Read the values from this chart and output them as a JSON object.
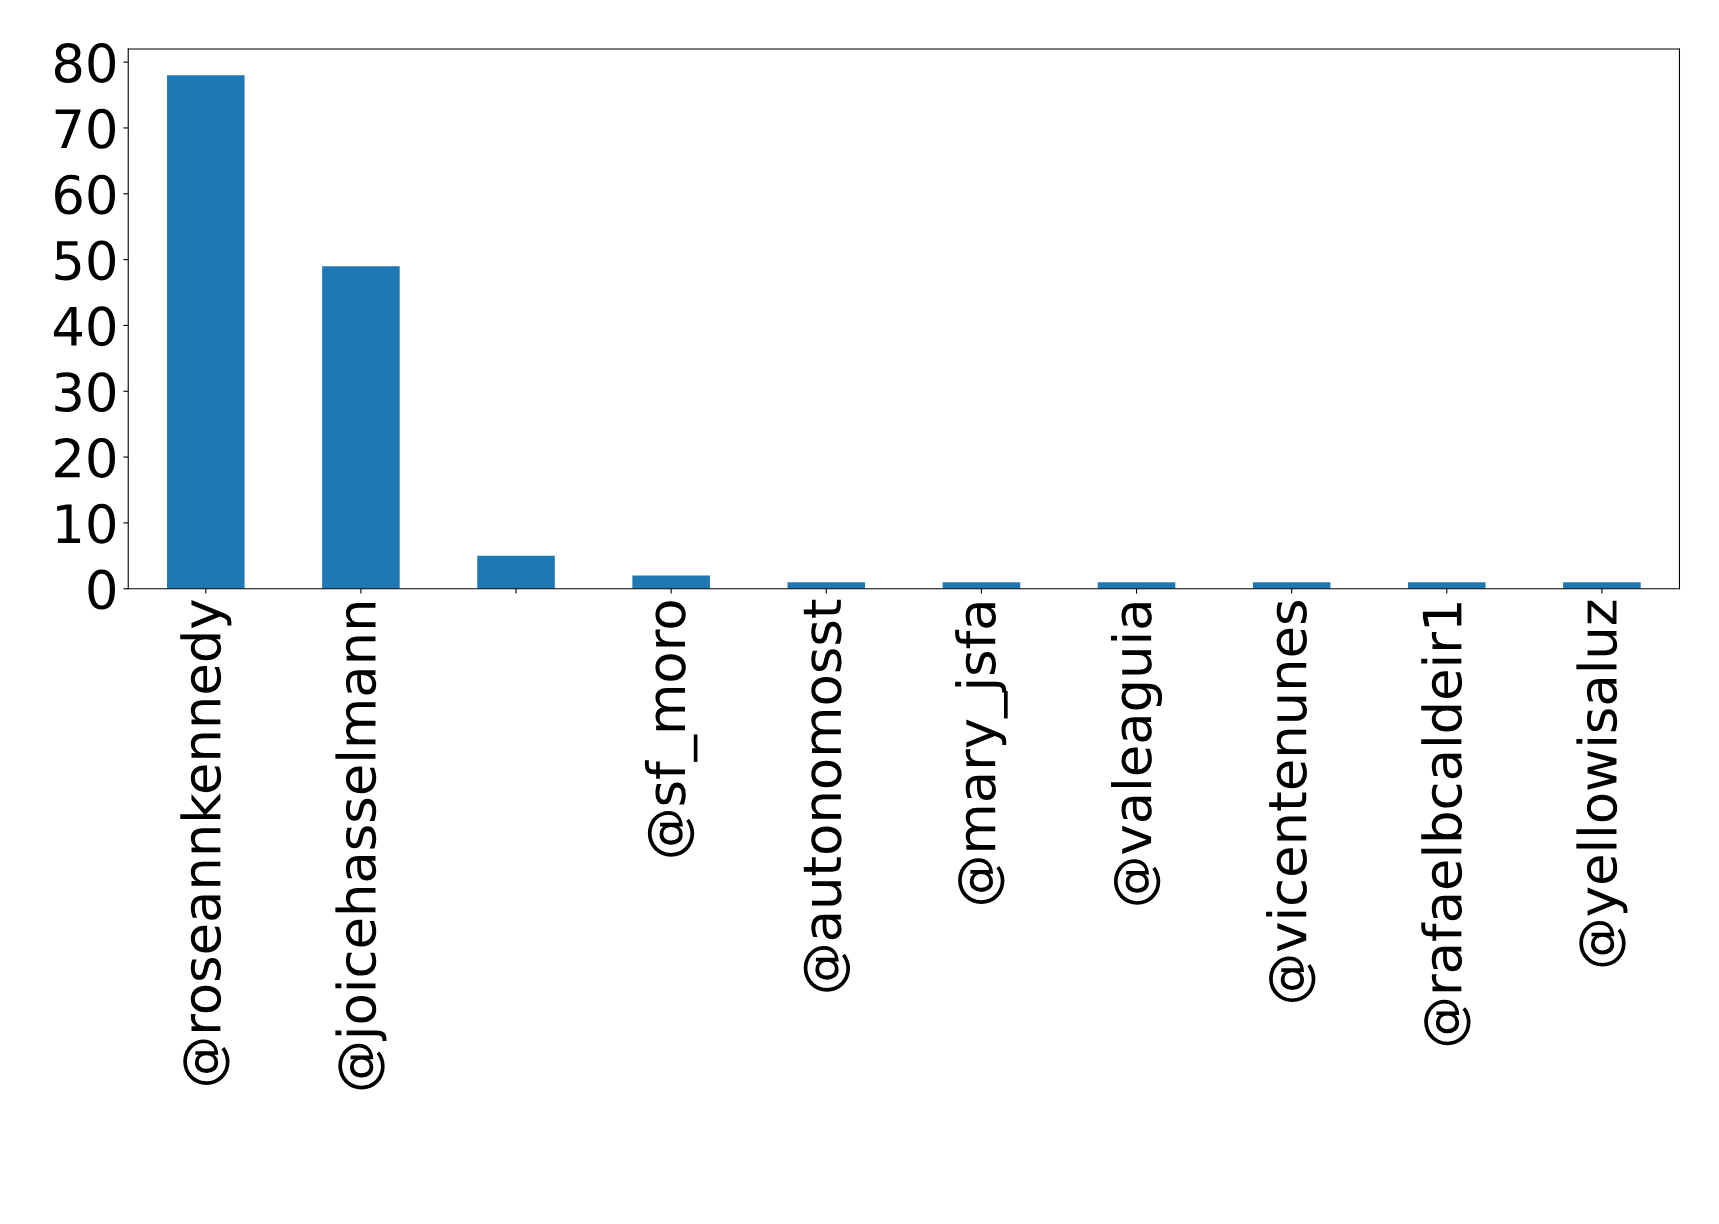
{
  "chart_data": {
    "type": "bar",
    "categories": [
      "@roseannkennedy",
      "@joicehasselmann",
      null,
      "@sf_moro",
      "@autonomosst",
      "@mary_jsfa",
      "@valeaguia",
      "@vicentenunes",
      "@rafaelbcaldeir1",
      "@yellowisaluz"
    ],
    "values": [
      78,
      49,
      5,
      2,
      1,
      1,
      1,
      1,
      1,
      1
    ],
    "color": "#1f77b4",
    "ylim": [
      0,
      82
    ],
    "yticks": [
      0,
      10,
      20,
      30,
      40,
      50,
      60,
      70,
      80
    ],
    "grid": false
  }
}
